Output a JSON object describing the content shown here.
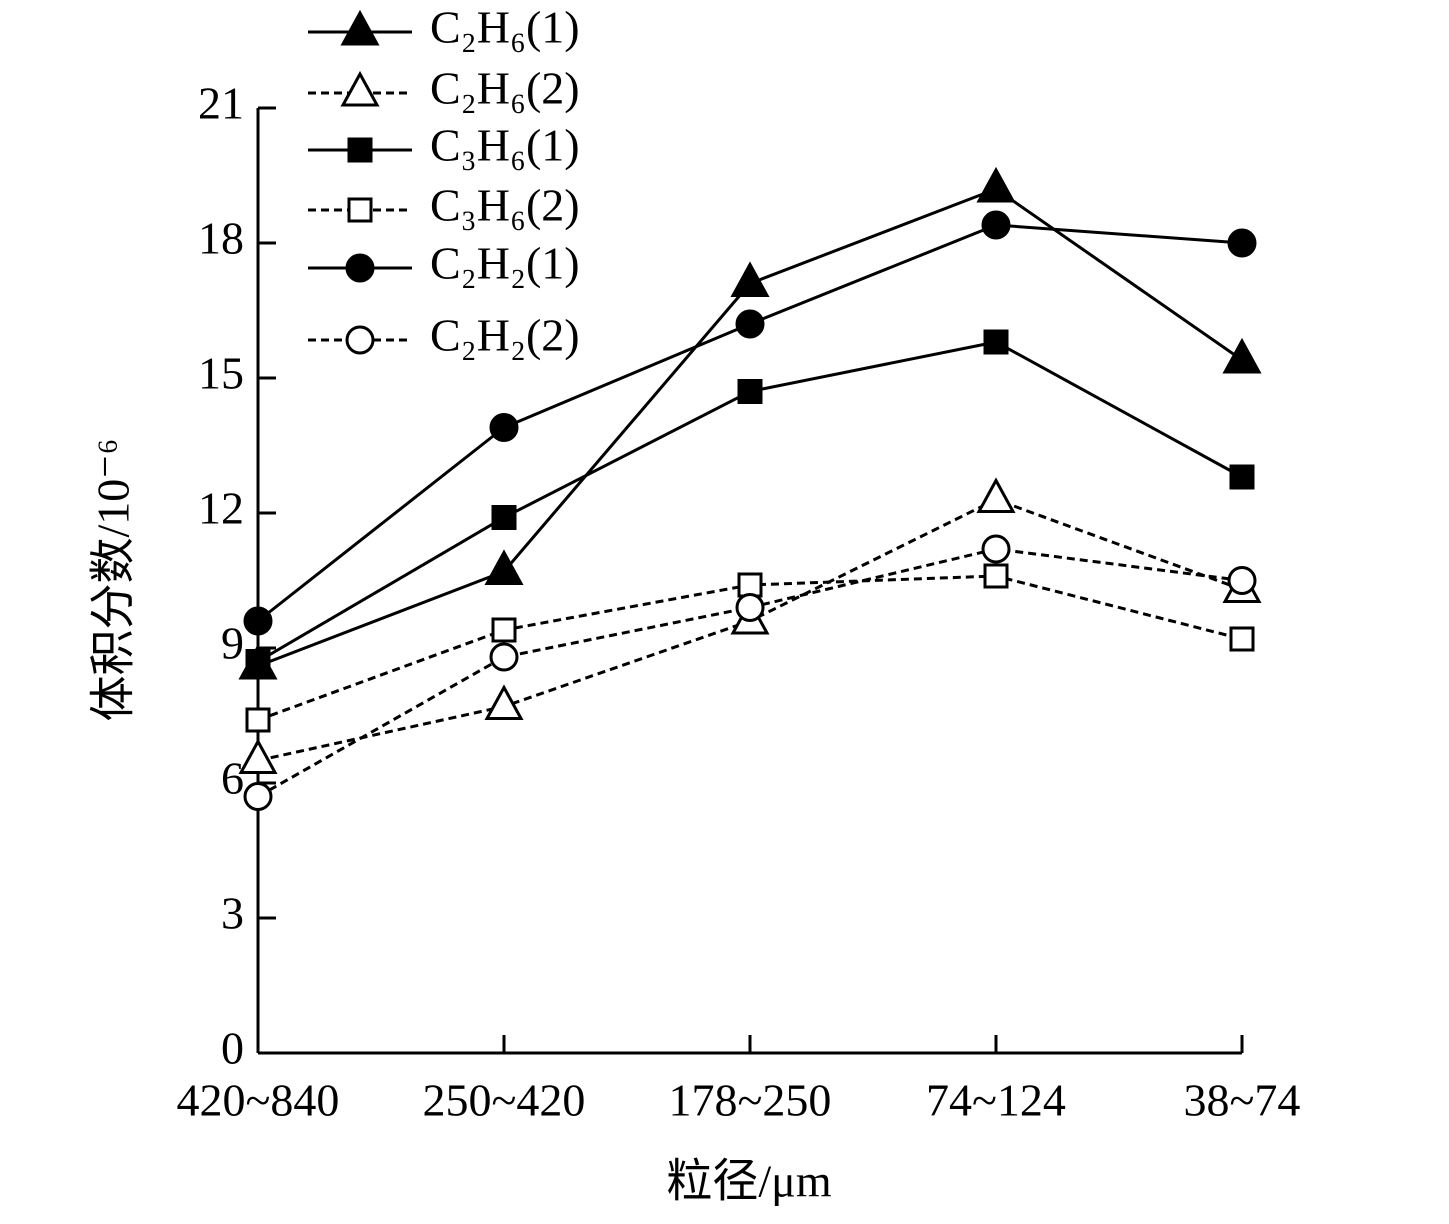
{
  "chart_data": {
    "type": "line",
    "xlabel": "粒径/μm",
    "ylabel": "体积分数/10⁻⁶",
    "categories": [
      "420~840",
      "250~420",
      "178~250",
      "74~124",
      "38~74"
    ],
    "ylim": [
      0,
      21
    ],
    "yticks": [
      0,
      3,
      6,
      9,
      12,
      15,
      18,
      21
    ],
    "legend": "upper left",
    "series": [
      {
        "name": "C₂H₆(1)",
        "color": "#000000",
        "marker": "triangle",
        "filled": true,
        "line_style": "solid",
        "values": [
          8.6,
          10.7,
          17.1,
          19.2,
          15.4
        ]
      },
      {
        "name": "C₂H₆(2)",
        "color": "#000000",
        "marker": "triangle",
        "filled": false,
        "line_style": "dashed",
        "values": [
          6.5,
          7.7,
          9.6,
          12.3,
          10.3
        ]
      },
      {
        "name": "C₃H₆(1)",
        "color": "#000000",
        "marker": "square",
        "filled": true,
        "line_style": "solid",
        "values": [
          8.7,
          11.9,
          14.7,
          15.8,
          12.8
        ]
      },
      {
        "name": "C₃H₆(2)",
        "color": "#000000",
        "marker": "square",
        "filled": false,
        "line_style": "dashed",
        "values": [
          7.4,
          9.4,
          10.4,
          10.6,
          9.2
        ]
      },
      {
        "name": "C₂H₂(1)",
        "color": "#000000",
        "marker": "circle",
        "filled": true,
        "line_style": "solid",
        "values": [
          9.6,
          13.9,
          16.2,
          18.4,
          18.0
        ]
      },
      {
        "name": "C₂H₂(2)",
        "color": "#000000",
        "marker": "circle",
        "filled": false,
        "line_style": "dashed",
        "values": [
          5.7,
          8.8,
          9.9,
          11.2,
          10.5
        ]
      }
    ]
  }
}
